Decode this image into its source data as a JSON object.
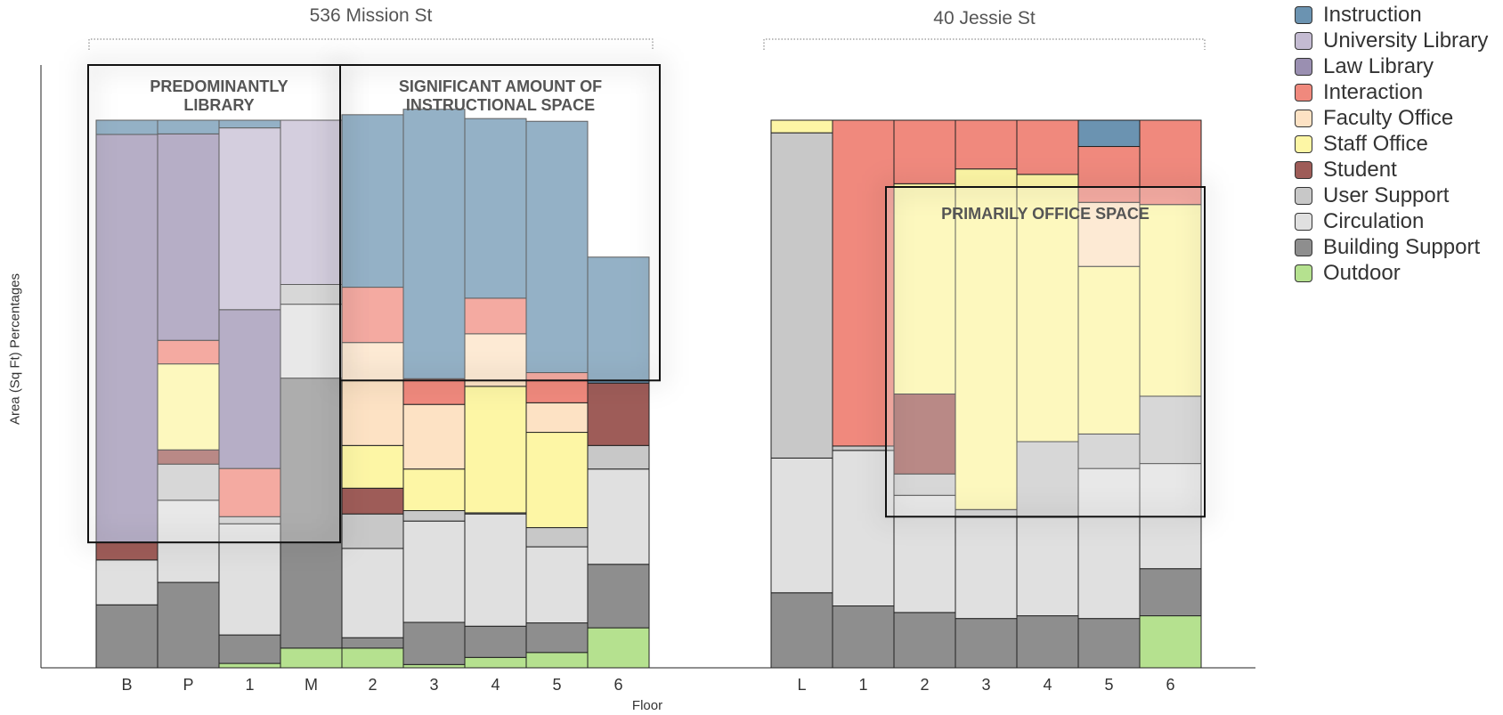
{
  "chart_data": {
    "type": "bar",
    "subtype": "stacked-percent",
    "xlabel": "Floor",
    "ylabel": "Area (Sq Ft) Percentages",
    "ylim": [
      0,
      100
    ],
    "categories_order_bottom_to_top": [
      "Outdoor",
      "Building Support",
      "Circulation",
      "User Support",
      "Student",
      "Staff Office",
      "Faculty Office",
      "Interaction",
      "Law Library",
      "University Library",
      "Instruction"
    ],
    "legend": [
      {
        "name": "Instruction",
        "color": "#6b93b1"
      },
      {
        "name": "University Library",
        "color": "#c4bbd2"
      },
      {
        "name": "Law Library",
        "color": "#9a8fb1"
      },
      {
        "name": "Interaction",
        "color": "#f0897d"
      },
      {
        "name": "Faculty Office",
        "color": "#fde2c4"
      },
      {
        "name": "Staff Office",
        "color": "#fdf6a5"
      },
      {
        "name": "Student",
        "color": "#9e5c58"
      },
      {
        "name": "User Support",
        "color": "#c8c8c8"
      },
      {
        "name": "Circulation",
        "color": "#e0e0e0"
      },
      {
        "name": "Building Support",
        "color": "#8e8e8e"
      },
      {
        "name": "Outdoor",
        "color": "#b5e18f"
      }
    ],
    "legend_position": "right",
    "groups": [
      {
        "building": "536 Mission St",
        "floors": [
          {
            "floor": "B",
            "values": {
              "Outdoor": 0,
              "Building Support": 11.5,
              "Circulation": 8.2,
              "User Support": 0,
              "Student": 3.2,
              "Staff Office": 0,
              "Faculty Office": 0,
              "Interaction": 0,
              "Law Library": 74.5,
              "University Library": 0,
              "Instruction": 2.6
            }
          },
          {
            "floor": "P",
            "values": {
              "Outdoor": 0,
              "Building Support": 15.6,
              "Circulation": 15.0,
              "User Support": 6.6,
              "Student": 2.6,
              "Staff Office": 15.7,
              "Faculty Office": 0,
              "Interaction": 4.3,
              "Law Library": 37.7,
              "University Library": 0,
              "Instruction": 2.5
            }
          },
          {
            "floor": "1",
            "values": {
              "Outdoor": 0.8,
              "Building Support": 5.2,
              "Circulation": 20.3,
              "User Support": 1.3,
              "Student": 0,
              "Staff Office": 0,
              "Faculty Office": 0,
              "Interaction": 8.8,
              "Law Library": 29.0,
              "University Library": 33.2,
              "Instruction": 1.4
            }
          },
          {
            "floor": "M",
            "values": {
              "Outdoor": 3.6,
              "Building Support": 49.3,
              "Circulation": 13.5,
              "User Support": 3.6,
              "Student": 0,
              "Staff Office": 0,
              "Faculty Office": 0,
              "Interaction": 0,
              "Law Library": 0,
              "University Library": 30.0,
              "Instruction": 0
            }
          },
          {
            "floor": "2",
            "values": {
              "Outdoor": 3.6,
              "Building Support": 1.9,
              "Circulation": 16.3,
              "User Support": 6.3,
              "Student": 4.7,
              "Staff Office": 7.8,
              "Faculty Office": 18.8,
              "Interaction": 10.1,
              "Law Library": 0,
              "University Library": 0,
              "Instruction": 31.5
            }
          },
          {
            "floor": "3",
            "values": {
              "Outdoor": 0.6,
              "Building Support": 7.7,
              "Circulation": 18.5,
              "User Support": 1.9,
              "Student": 0,
              "Staff Office": 7.6,
              "Faculty Office": 11.8,
              "Interaction": 4.7,
              "Law Library": 0,
              "University Library": 0,
              "Instruction": 49.2
            }
          },
          {
            "floor": "4",
            "values": {
              "Outdoor": 1.9,
              "Building Support": 5.7,
              "Circulation": 20.5,
              "User Support": 0.2,
              "Student": 0,
              "Staff Office": 23.1,
              "Faculty Office": 9.6,
              "Interaction": 6.5,
              "Law Library": 0,
              "University Library": 0,
              "Instruction": 32.8
            }
          },
          {
            "floor": "5",
            "values": {
              "Outdoor": 2.8,
              "Building Support": 5.4,
              "Circulation": 13.9,
              "User Support": 3.5,
              "Student": 0,
              "Staff Office": 17.4,
              "Faculty Office": 5.4,
              "Interaction": 5.5,
              "Law Library": 0,
              "University Library": 0,
              "Instruction": 45.9
            }
          },
          {
            "floor": "6",
            "values": {
              "Outdoor": 7.3,
              "Building Support": 11.6,
              "Circulation": 17.4,
              "User Support": 4.3,
              "Student": 11.4,
              "Staff Office": 0,
              "Faculty Office": 0,
              "Interaction": 0,
              "Law Library": 0,
              "University Library": 0,
              "Instruction": 23.0
            }
          }
        ]
      },
      {
        "building": "40 Jessie St",
        "floors": [
          {
            "floor": "L",
            "values": {
              "Outdoor": 0,
              "Building Support": 13.7,
              "Circulation": 24.6,
              "User Support": 59.4,
              "Student": 0,
              "Staff Office": 2.3,
              "Faculty Office": 0,
              "Interaction": 0,
              "Law Library": 0,
              "University Library": 0,
              "Instruction": 0
            }
          },
          {
            "floor": "1",
            "values": {
              "Outdoor": 0,
              "Building Support": 11.3,
              "Circulation": 28.4,
              "User Support": 0.8,
              "Student": 0,
              "Staff Office": 0,
              "Faculty Office": 0,
              "Interaction": 59.5,
              "Law Library": 0,
              "University Library": 0,
              "Instruction": 0
            }
          },
          {
            "floor": "2",
            "values": {
              "Outdoor": 0,
              "Building Support": 10.1,
              "Circulation": 21.4,
              "User Support": 3.9,
              "Student": 14.6,
              "Staff Office": 38.4,
              "Faculty Office": 0,
              "Interaction": 11.6,
              "Law Library": 0,
              "University Library": 0,
              "Instruction": 0
            }
          },
          {
            "floor": "3",
            "values": {
              "Outdoor": 0,
              "Building Support": 9.0,
              "Circulation": 18.5,
              "User Support": 1.4,
              "Student": 0,
              "Staff Office": 62.2,
              "Faculty Office": 0,
              "Interaction": 8.9,
              "Law Library": 0,
              "University Library": 0,
              "Instruction": 0
            }
          },
          {
            "floor": "4",
            "values": {
              "Outdoor": 0,
              "Building Support": 9.5,
              "Circulation": 18.0,
              "User Support": 13.8,
              "Student": 0,
              "Staff Office": 48.8,
              "Faculty Office": 0,
              "Interaction": 9.9,
              "Law Library": 0,
              "University Library": 0,
              "Instruction": 0
            }
          },
          {
            "floor": "5",
            "values": {
              "Outdoor": 0,
              "Building Support": 9.0,
              "Circulation": 27.4,
              "User Support": 6.3,
              "Student": 0,
              "Staff Office": 30.6,
              "Faculty Office": 11.7,
              "Interaction": 10.2,
              "Law Library": 0,
              "University Library": 0,
              "Instruction": 4.8
            }
          },
          {
            "floor": "6",
            "values": {
              "Outdoor": 9.5,
              "Building Support": 8.6,
              "Circulation": 19.2,
              "User Support": 12.3,
              "Student": 0,
              "Staff Office": 35.0,
              "Faculty Office": 0,
              "Interaction": 15.4,
              "Law Library": 0,
              "University Library": 0,
              "Instruction": 0
            }
          }
        ]
      }
    ],
    "annotations": [
      {
        "text": "PREDOMINANTLY\nLIBRARY"
      },
      {
        "text": "SIGNIFICANT AMOUNT OF\nINSTRUCTIONAL SPACE"
      },
      {
        "text": "PRIMARILY OFFICE SPACE"
      }
    ]
  }
}
